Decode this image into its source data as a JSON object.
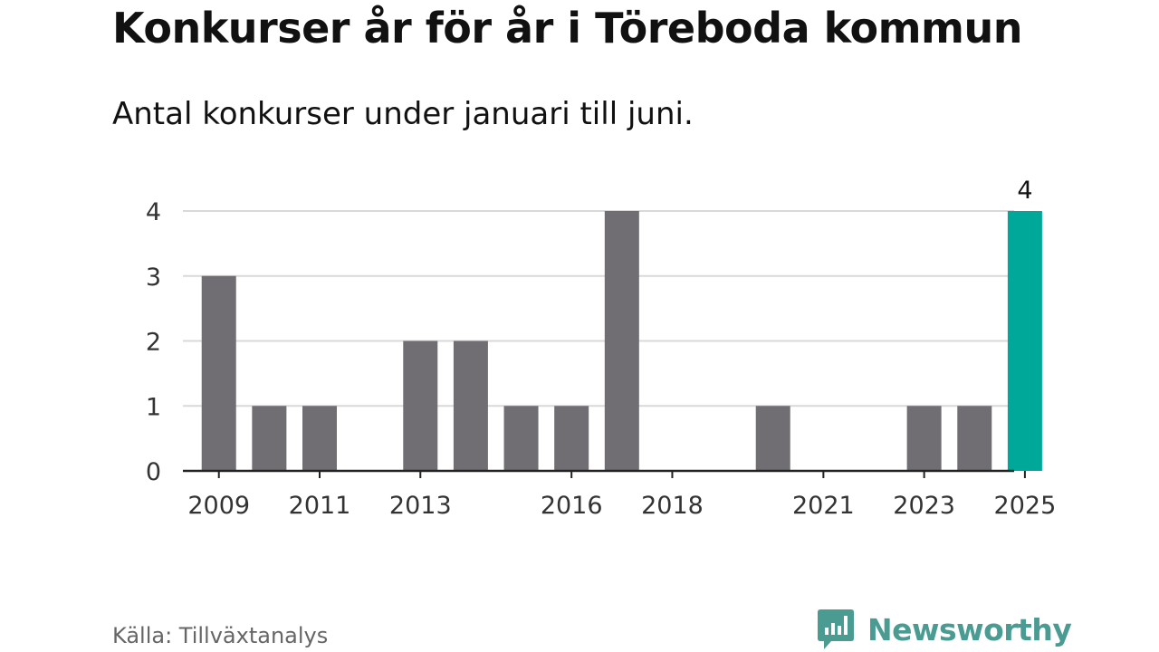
{
  "title": "Konkurser år för år i Töreboda kommun",
  "subtitle": "Antal konkurser under januari till juni.",
  "source": "Källa: Tillväxtanalys",
  "brand": "Newsworthy",
  "colors": {
    "bar": "#706e73",
    "highlight": "#00a89a",
    "grid": "#d9d9d9",
    "axis": "#222222",
    "brand": "#4a9c92"
  },
  "chart_data": {
    "type": "bar",
    "title": "Konkurser år för år i Töreboda kommun",
    "subtitle": "Antal konkurser under januari till juni.",
    "categories": [
      "2009",
      "2010",
      "2011",
      "2012",
      "2013",
      "2014",
      "2015",
      "2016",
      "2017",
      "2018",
      "2019",
      "2020",
      "2021",
      "2022",
      "2023",
      "2024",
      "2025"
    ],
    "values": [
      3,
      1,
      1,
      0,
      2,
      2,
      1,
      1,
      4,
      0,
      0,
      1,
      0,
      0,
      1,
      1,
      4
    ],
    "x_tick_labels": [
      "2009",
      "2011",
      "2013",
      "2016",
      "2018",
      "2021",
      "2023",
      "2025"
    ],
    "y_ticks": [
      0,
      1,
      2,
      3,
      4
    ],
    "ylim": [
      0,
      4
    ],
    "highlight": "2025",
    "data_labels": [
      {
        "category": "2025",
        "label": "4"
      }
    ],
    "xlabel": "",
    "ylabel": "",
    "grid": true
  }
}
